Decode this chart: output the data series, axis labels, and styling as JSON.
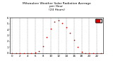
{
  "title": "Milwaukee Weather Solar Radiation Average\nper Hour\n(24 Hours)",
  "hours": [
    0,
    1,
    2,
    3,
    4,
    5,
    6,
    7,
    8,
    9,
    10,
    11,
    12,
    13,
    14,
    15,
    16,
    17,
    18,
    19,
    20,
    21,
    22,
    23
  ],
  "solar": [
    0,
    0,
    0,
    0,
    0,
    0,
    2,
    18,
    65,
    150,
    230,
    290,
    305,
    280,
    240,
    190,
    120,
    55,
    12,
    1,
    0,
    0,
    0,
    0
  ],
  "ylim": [
    0,
    330
  ],
  "xlim": [
    -0.5,
    23.5
  ],
  "dot_color": "#cc0000",
  "dot_size": 1.5,
  "grid_color": "#888888",
  "bg_color": "#ffffff",
  "legend_color": "#cc0000",
  "title_fontsize": 3.2,
  "tick_fontsize": 2.8,
  "yticks": [
    0,
    55,
    110,
    165,
    220,
    275,
    330
  ],
  "ytick_labels": [
    "0",
    "1",
    "2",
    "3",
    "4",
    "5",
    "6"
  ],
  "xtick_step": 2
}
